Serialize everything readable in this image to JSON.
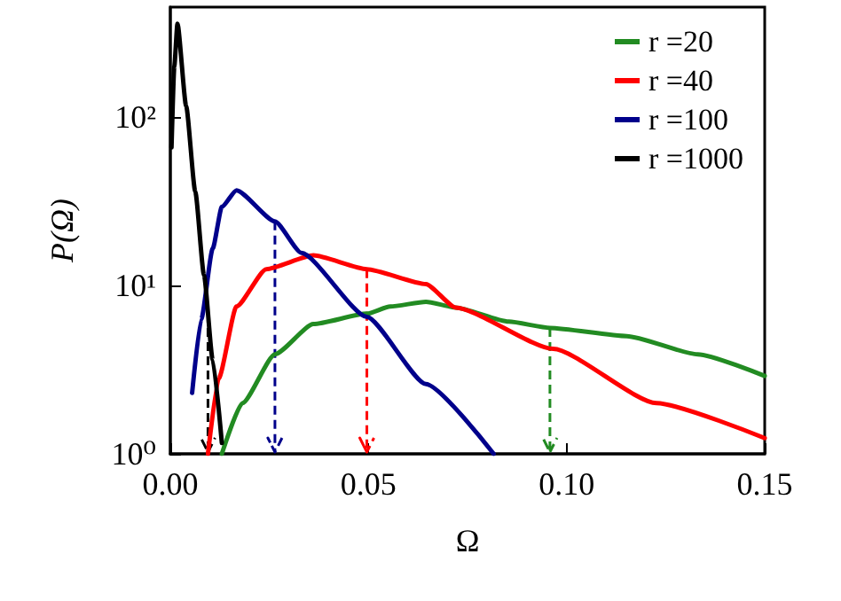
{
  "chart_data": {
    "type": "line",
    "xlabel": "Ω",
    "ylabel": "P(Ω)",
    "log": "y",
    "xlim": [
      0,
      0.15
    ],
    "xticks": [
      {
        "value": 0,
        "label": "0.00"
      },
      {
        "value": 0.05,
        "label": "0.05"
      },
      {
        "value": 0.1,
        "label": "0.10"
      },
      {
        "value": 0.15,
        "label": "0.15"
      }
    ],
    "ylim": [
      1,
      450
    ],
    "yticks": [
      {
        "value": 1,
        "label": "10⁰"
      },
      {
        "value": 10,
        "label": "10¹"
      },
      {
        "value": 100,
        "label": "10²"
      }
    ],
    "grid": false,
    "legend": "top right",
    "line_style": "solid",
    "marker": "none",
    "series": [
      {
        "name": "r =20",
        "color": "#228b22",
        "x": [
          0.013,
          0.0182,
          0.0264,
          0.0361,
          0.0496,
          0.0555,
          0.0645,
          0.072,
          0.0854,
          0.0958,
          0.1152,
          0.1331,
          0.15
        ],
        "values": [
          1.0,
          2.0,
          3.9,
          5.9,
          6.8,
          7.5,
          8.0,
          7.4,
          6.1,
          5.6,
          5.0,
          3.9,
          2.9
        ]
      },
      {
        "name": "r =40",
        "color": "#ff0000",
        "x": [
          0.0095,
          0.0122,
          0.0167,
          0.0242,
          0.0361,
          0.0496,
          0.0645,
          0.072,
          0.0966,
          0.1227,
          0.15
        ],
        "values": [
          1.0,
          2.8,
          7.5,
          12.5,
          15.1,
          12.5,
          10.2,
          7.4,
          4.2,
          2.0,
          1.24
        ]
      },
      {
        "name": "r =100",
        "color": "#00008b",
        "x": [
          0.0055,
          0.0078,
          0.0107,
          0.013,
          0.0167,
          0.0264,
          0.0331,
          0.0496,
          0.0645,
          0.0816
        ],
        "values": [
          2.3,
          6.3,
          16.6,
          29.3,
          36.7,
          24,
          15.6,
          6.5,
          2.6,
          1.0
        ]
      },
      {
        "name": "r =1000",
        "color": "#000000",
        "x": [
          0.0003,
          0.001,
          0.0018,
          0.004,
          0.0063,
          0.0085,
          0.0107,
          0.013
        ],
        "values": [
          66,
          200,
          359,
          116,
          36,
          11.5,
          3.6,
          1.16
        ]
      }
    ],
    "ref_lines": [
      {
        "axis": "x",
        "value": 0.0095,
        "color": "#000000",
        "line_style": "dashed",
        "label": null
      },
      {
        "axis": "x",
        "value": 0.0264,
        "color": "#00008b",
        "line_style": "dashed",
        "label": null
      },
      {
        "axis": "x",
        "value": 0.0496,
        "color": "#ff0000",
        "line_style": "dashed",
        "label": null
      },
      {
        "axis": "x",
        "value": 0.0958,
        "color": "#228b22",
        "line_style": "dashed",
        "label": null
      }
    ]
  }
}
